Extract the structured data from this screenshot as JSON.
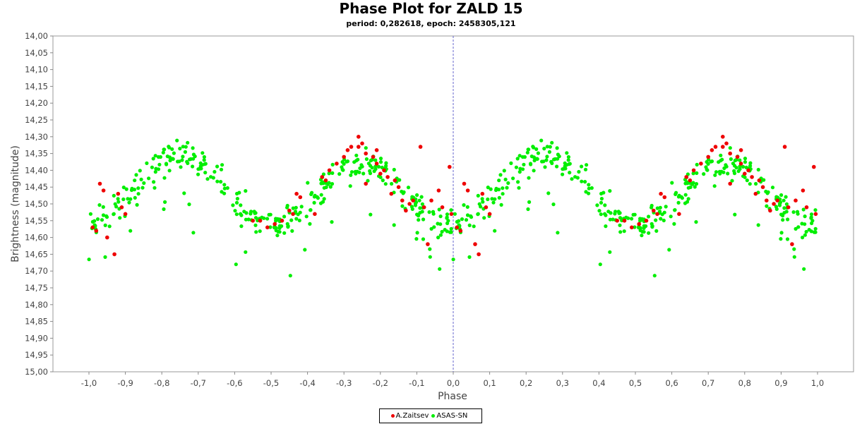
{
  "chart_data": {
    "type": "scatter",
    "title": "Phase Plot for ZALD 15",
    "subtitle": "period: 0,282618, epoch: 2458305,121",
    "xlabel": "Phase",
    "ylabel": "Brightness (magnitude)",
    "xlim": [
      -1.0,
      1.0
    ],
    "ylim": [
      14.0,
      15.0
    ],
    "y_inverted": true,
    "grid": false,
    "x_ticks": [
      "-1,0",
      "-0,9",
      "-0,8",
      "-0,7",
      "-0,6",
      "-0,5",
      "-0,4",
      "-0,3",
      "-0,2",
      "-0,1",
      "0,0",
      "0,1",
      "0,2",
      "0,3",
      "0,4",
      "0,5",
      "0,6",
      "0,7",
      "0,8",
      "0,9",
      "1,0"
    ],
    "y_ticks": [
      "14,00",
      "14,05",
      "14,10",
      "14,15",
      "14,20",
      "14,25",
      "14,30",
      "14,35",
      "14,40",
      "14,45",
      "14,50",
      "14,55",
      "14,60",
      "14,65",
      "14,70",
      "14,75",
      "14,80",
      "14,85",
      "14,90",
      "14,95",
      "15,00"
    ],
    "reference_line": {
      "x": 0.0,
      "style": "dashed",
      "color": "#6666cc"
    },
    "legend_position": "bottom-center",
    "series": [
      {
        "name": "A.Zaitsev",
        "color": "#ee0000",
        "points": [
          [
            0.01,
            14.57
          ],
          [
            0.02,
            14.58
          ],
          [
            0.03,
            14.44
          ],
          [
            0.04,
            14.46
          ],
          [
            0.06,
            14.62
          ],
          [
            0.07,
            14.65
          ],
          [
            0.08,
            14.47
          ],
          [
            0.1,
            14.53
          ],
          [
            0.09,
            14.51
          ],
          [
            0.45,
            14.55
          ],
          [
            0.47,
            14.55
          ],
          [
            0.49,
            14.57
          ],
          [
            0.51,
            14.56
          ],
          [
            0.53,
            14.55
          ],
          [
            0.55,
            14.52
          ],
          [
            0.57,
            14.47
          ],
          [
            0.58,
            14.48
          ],
          [
            0.56,
            14.53
          ],
          [
            0.62,
            14.53
          ],
          [
            0.64,
            14.42
          ],
          [
            0.65,
            14.43
          ],
          [
            0.66,
            14.4
          ],
          [
            0.68,
            14.38
          ],
          [
            0.7,
            14.36
          ],
          [
            0.71,
            14.34
          ],
          [
            0.72,
            14.33
          ],
          [
            0.74,
            14.33
          ],
          [
            0.75,
            14.32
          ],
          [
            0.76,
            14.35
          ],
          [
            0.78,
            14.36
          ],
          [
            0.79,
            14.38
          ],
          [
            0.8,
            14.41
          ],
          [
            0.81,
            14.4
          ],
          [
            0.82,
            14.42
          ],
          [
            0.84,
            14.43
          ],
          [
            0.85,
            14.45
          ],
          [
            0.83,
            14.47
          ],
          [
            0.86,
            14.49
          ],
          [
            0.88,
            14.5
          ],
          [
            0.89,
            14.49
          ],
          [
            0.91,
            14.33
          ],
          [
            0.92,
            14.51
          ],
          [
            0.94,
            14.49
          ],
          [
            0.96,
            14.46
          ],
          [
            0.97,
            14.51
          ],
          [
            0.99,
            14.39
          ],
          [
            0.995,
            14.53
          ],
          [
            0.74,
            14.3
          ],
          [
            0.79,
            14.34
          ],
          [
            0.76,
            14.44
          ],
          [
            0.87,
            14.52
          ],
          [
            0.93,
            14.62
          ],
          [
            -0.99,
            14.57
          ],
          [
            -0.98,
            14.58
          ],
          [
            -0.97,
            14.44
          ],
          [
            -0.96,
            14.46
          ],
          [
            -0.95,
            14.6
          ],
          [
            -0.93,
            14.65
          ],
          [
            -0.92,
            14.47
          ],
          [
            -0.9,
            14.53
          ],
          [
            -0.91,
            14.51
          ],
          [
            -0.55,
            14.55
          ],
          [
            -0.53,
            14.55
          ],
          [
            -0.51,
            14.57
          ],
          [
            -0.49,
            14.56
          ],
          [
            -0.47,
            14.55
          ],
          [
            -0.45,
            14.52
          ],
          [
            -0.43,
            14.47
          ],
          [
            -0.42,
            14.48
          ],
          [
            -0.44,
            14.53
          ],
          [
            -0.38,
            14.53
          ],
          [
            -0.36,
            14.42
          ],
          [
            -0.35,
            14.43
          ],
          [
            -0.34,
            14.4
          ],
          [
            -0.32,
            14.38
          ],
          [
            -0.3,
            14.36
          ],
          [
            -0.29,
            14.34
          ],
          [
            -0.28,
            14.33
          ],
          [
            -0.26,
            14.33
          ],
          [
            -0.25,
            14.32
          ],
          [
            -0.24,
            14.35
          ],
          [
            -0.22,
            14.36
          ],
          [
            -0.21,
            14.38
          ],
          [
            -0.2,
            14.41
          ],
          [
            -0.19,
            14.4
          ],
          [
            -0.18,
            14.42
          ],
          [
            -0.16,
            14.43
          ],
          [
            -0.15,
            14.45
          ],
          [
            -0.17,
            14.47
          ],
          [
            -0.14,
            14.49
          ],
          [
            -0.12,
            14.5
          ],
          [
            -0.11,
            14.49
          ],
          [
            -0.09,
            14.33
          ],
          [
            -0.08,
            14.51
          ],
          [
            -0.06,
            14.49
          ],
          [
            -0.04,
            14.46
          ],
          [
            -0.03,
            14.51
          ],
          [
            -0.01,
            14.39
          ],
          [
            -0.005,
            14.53
          ],
          [
            -0.26,
            14.3
          ],
          [
            -0.21,
            14.34
          ],
          [
            -0.24,
            14.44
          ],
          [
            -0.13,
            14.52
          ],
          [
            -0.07,
            14.62
          ]
        ]
      },
      {
        "name": "ASAS-SN",
        "color": "#00ee00"
      }
    ]
  },
  "legend": {
    "series_a_label": "A.Zaitsev",
    "series_b_label": "ASAS-SN"
  }
}
